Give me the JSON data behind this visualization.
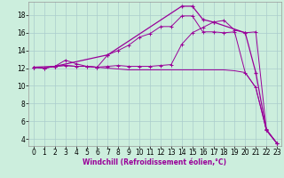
{
  "xlabel": "Windchill (Refroidissement éolien,°C)",
  "background_color": "#cceedd",
  "grid_color": "#aacccc",
  "line_color": "#990099",
  "xlim_min": -0.5,
  "xlim_max": 23.4,
  "ylim_min": 3.2,
  "ylim_max": 19.5,
  "xticks": [
    0,
    1,
    2,
    3,
    4,
    5,
    6,
    7,
    8,
    9,
    10,
    11,
    12,
    13,
    14,
    15,
    16,
    17,
    18,
    19,
    20,
    21,
    22,
    23
  ],
  "yticks": [
    4,
    6,
    8,
    10,
    12,
    14,
    16,
    18
  ],
  "curve1_x": [
    0,
    1,
    2,
    3,
    4,
    5,
    6,
    7,
    8,
    9,
    10,
    11,
    12,
    13,
    14,
    15,
    16,
    17,
    18,
    19,
    20,
    21,
    22,
    23
  ],
  "curve1_y": [
    12.1,
    12.0,
    12.2,
    12.9,
    12.5,
    12.2,
    12.1,
    13.5,
    14.0,
    14.6,
    15.5,
    15.9,
    16.7,
    16.7,
    17.9,
    17.9,
    16.1,
    16.1,
    16.0,
    16.1,
    11.5,
    9.8,
    5.0,
    3.5
  ],
  "curve2_x": [
    0,
    1,
    2,
    3,
    4,
    5,
    6,
    7,
    8,
    9,
    10,
    11,
    12,
    13,
    14,
    15,
    16,
    17,
    18,
    19,
    20,
    21,
    22,
    23
  ],
  "curve2_y": [
    12.1,
    12.0,
    12.2,
    12.3,
    12.2,
    12.2,
    12.1,
    12.2,
    12.3,
    12.2,
    12.2,
    12.2,
    12.3,
    12.4,
    14.7,
    16.0,
    16.6,
    17.2,
    17.4,
    16.3,
    16.0,
    16.1,
    5.1,
    3.5
  ],
  "curve3_x": [
    0,
    1,
    2,
    3,
    4,
    5,
    6,
    7,
    8,
    9,
    10,
    11,
    12,
    13,
    14,
    15,
    16,
    17,
    18,
    19,
    20,
    21,
    22,
    23
  ],
  "curve3_y": [
    12.1,
    12.0,
    12.2,
    12.3,
    12.2,
    12.2,
    12.1,
    12.0,
    11.9,
    11.8,
    11.8,
    11.8,
    11.8,
    11.8,
    11.8,
    11.8,
    11.8,
    11.8,
    11.8,
    11.7,
    11.5,
    9.8,
    5.0,
    3.5
  ],
  "curve4_x": [
    0,
    2,
    7,
    14,
    15,
    16,
    17,
    20,
    21,
    22,
    23
  ],
  "curve4_y": [
    12.1,
    12.2,
    13.5,
    19.0,
    19.0,
    17.5,
    17.2,
    16.0,
    11.5,
    5.0,
    3.5
  ],
  "tick_fontsize": 5.5,
  "xlabel_fontsize": 5.5,
  "lw_thin": 0.7,
  "lw_thick": 0.9,
  "marker_size": 2.5
}
